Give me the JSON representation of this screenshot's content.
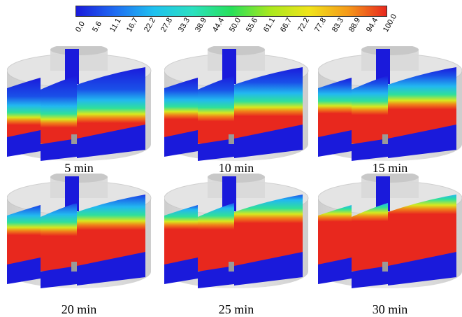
{
  "colorbar": {
    "ticks": [
      "0.0",
      "5.6",
      "11.1",
      "16.7",
      "22.2",
      "27.8",
      "33.3",
      "38.9",
      "44.4",
      "50.0",
      "55.6",
      "61.1",
      "66.7",
      "72.2",
      "77.8",
      "83.3",
      "88.9",
      "94.4",
      "100.0"
    ],
    "stops": [
      "#1a1adb",
      "#1f6cf2",
      "#1fc1f0",
      "#2be0c0",
      "#27e05a",
      "#a9e81e",
      "#f0e41a",
      "#f59a1a",
      "#e8281e"
    ]
  },
  "panels": [
    {
      "caption": "5 min",
      "level": 0.15
    },
    {
      "caption": "10 min",
      "level": 0.3
    },
    {
      "caption": "15 min",
      "level": 0.45
    },
    {
      "caption": "20 min",
      "level": 0.6
    },
    {
      "caption": "25 min",
      "level": 0.75
    },
    {
      "caption": "30 min",
      "level": 0.95
    }
  ]
}
